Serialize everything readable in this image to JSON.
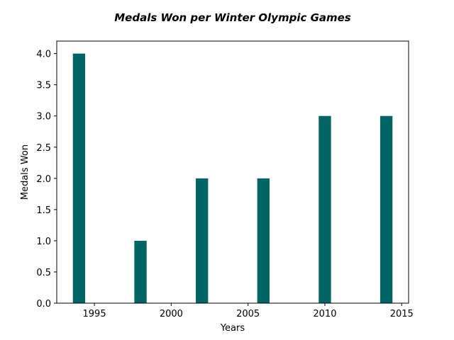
{
  "chart_data": {
    "type": "bar",
    "title": "Medals Won per Winter Olympic Games",
    "xlabel": "Years",
    "ylabel": "Medals Won",
    "x": [
      1994,
      1998,
      2002,
      2006,
      2010,
      2014
    ],
    "values": [
      4,
      1,
      2,
      2,
      3,
      3
    ],
    "xlim": [
      1992.55,
      2015.45
    ],
    "ylim": [
      0,
      4.2
    ],
    "xticks": [
      1995,
      2000,
      2005,
      2010,
      2015
    ],
    "xtick_labels": [
      "1995",
      "2000",
      "2005",
      "2010",
      "2015"
    ],
    "yticks": [
      0,
      0.5,
      1,
      1.5,
      2,
      2.5,
      3,
      3.5,
      4
    ],
    "ytick_labels": [
      "0.0",
      "0.5",
      "1.0",
      "1.5",
      "2.0",
      "2.5",
      "3.0",
      "3.5",
      "4.0"
    ],
    "bar_width": 0.8,
    "bar_color": "#016564",
    "grid": false,
    "legend": "none"
  }
}
